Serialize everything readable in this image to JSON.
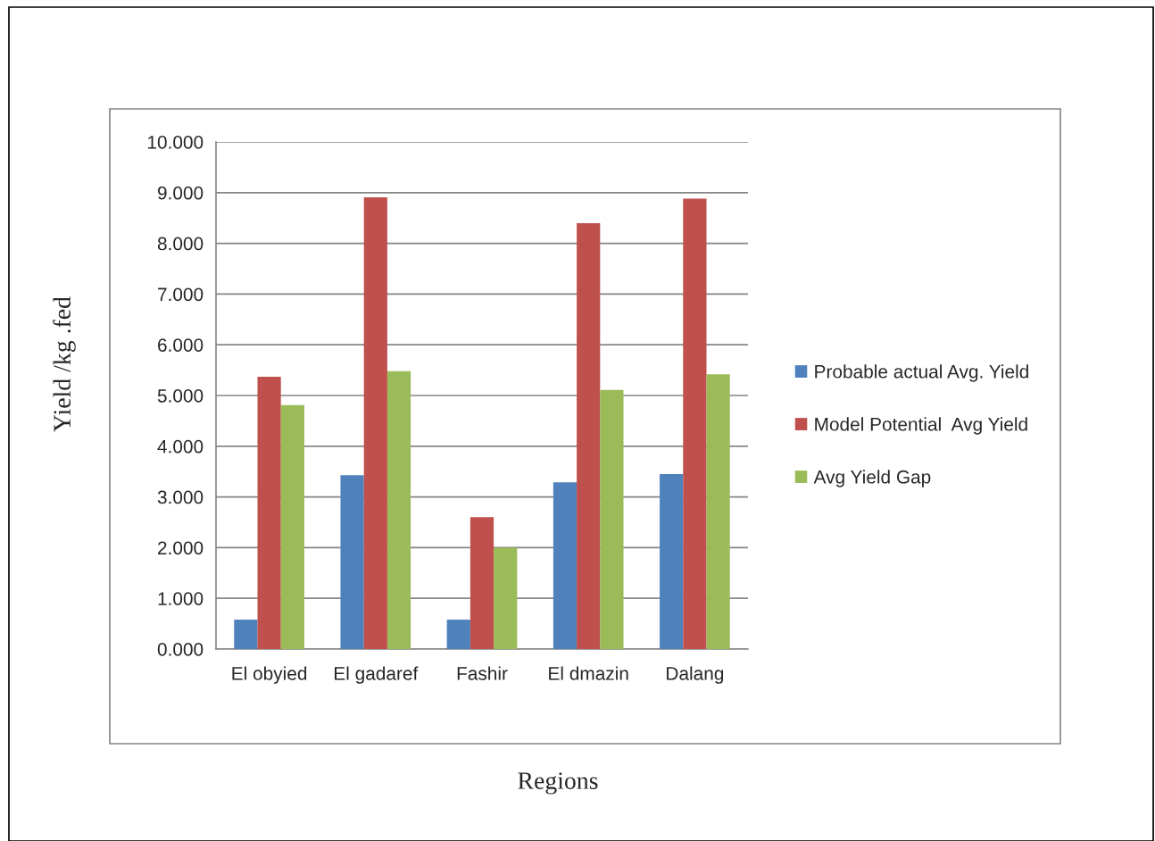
{
  "chart_data": {
    "type": "bar",
    "xlabel": "Regions",
    "ylabel": "Yield /kg .fed",
    "categories": [
      "El obyied",
      "El gadaref",
      "Fashir",
      "El dmazin",
      "Dalang"
    ],
    "series": [
      {
        "name": "Probable actual Avg. Yield",
        "color": "#4f81bd",
        "values": [
          0.58,
          3.43,
          0.58,
          3.29,
          3.45
        ]
      },
      {
        "name": "Model Potential  Avg Yield",
        "color": "#c0504d",
        "values": [
          5.37,
          8.91,
          2.6,
          8.4,
          8.88
        ]
      },
      {
        "name": "Avg Yield Gap",
        "color": "#9bbb59",
        "values": [
          4.81,
          5.48,
          2.0,
          5.11,
          5.42
        ]
      }
    ],
    "ylim": [
      0,
      10
    ],
    "yticks": [
      {
        "value": 0,
        "label": "0.000"
      },
      {
        "value": 1,
        "label": "1.000"
      },
      {
        "value": 2,
        "label": "2.000"
      },
      {
        "value": 3,
        "label": "3.000"
      },
      {
        "value": 4,
        "label": "4.000"
      },
      {
        "value": 5,
        "label": "5.000"
      },
      {
        "value": 6,
        "label": "6.000"
      },
      {
        "value": 7,
        "label": "7.000"
      },
      {
        "value": 8,
        "label": "8.000"
      },
      {
        "value": 9,
        "label": "9.000"
      },
      {
        "value": 10,
        "label": "10.000"
      }
    ],
    "grid": "y",
    "legend": "right"
  }
}
